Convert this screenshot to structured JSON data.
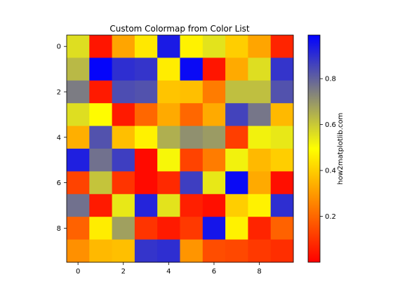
{
  "chart_data": {
    "type": "heatmap",
    "title": "Custom Colormap from Color List",
    "xlabel": "",
    "ylabel": "",
    "colorbar_label": "how2matplotlib.com",
    "colormap": [
      "#ff0000",
      "#ffff00",
      "#0000ff"
    ],
    "vmin": 0.0,
    "vmax": 0.99,
    "x_ticks": [
      0,
      2,
      4,
      6,
      8
    ],
    "y_ticks": [
      0,
      2,
      4,
      6,
      8
    ],
    "colorbar_ticks": [
      0.2,
      0.4,
      0.6,
      0.8
    ],
    "values": [
      [
        0.56,
        0.04,
        0.32,
        0.45,
        0.94,
        0.47,
        0.55,
        0.4,
        0.32,
        0.07
      ],
      [
        0.63,
        0.98,
        0.9,
        0.89,
        0.46,
        0.97,
        0.04,
        0.33,
        0.56,
        0.89
      ],
      [
        0.75,
        0.05,
        0.84,
        0.83,
        0.38,
        0.37,
        0.24,
        0.62,
        0.62,
        0.83
      ],
      [
        0.56,
        0.49,
        0.05,
        0.2,
        0.33,
        0.2,
        0.33,
        0.86,
        0.76,
        0.36
      ],
      [
        0.34,
        0.83,
        0.37,
        0.47,
        0.65,
        0.71,
        0.69,
        0.12,
        0.52,
        0.54
      ],
      [
        0.93,
        0.77,
        0.87,
        0.02,
        0.51,
        0.13,
        0.24,
        0.52,
        0.36,
        0.4
      ],
      [
        0.13,
        0.61,
        0.1,
        0.02,
        0.08,
        0.87,
        0.54,
        0.97,
        0.33,
        0.03
      ],
      [
        0.77,
        0.05,
        0.54,
        0.92,
        0.55,
        0.06,
        0.03,
        0.4,
        0.47,
        0.9
      ],
      [
        0.19,
        0.46,
        0.68,
        0.1,
        0.05,
        0.11,
        0.95,
        0.47,
        0.07,
        0.19
      ],
      [
        0.28,
        0.36,
        0.37,
        0.89,
        0.9,
        0.29,
        0.15,
        0.14,
        0.11,
        0.09
      ]
    ]
  }
}
